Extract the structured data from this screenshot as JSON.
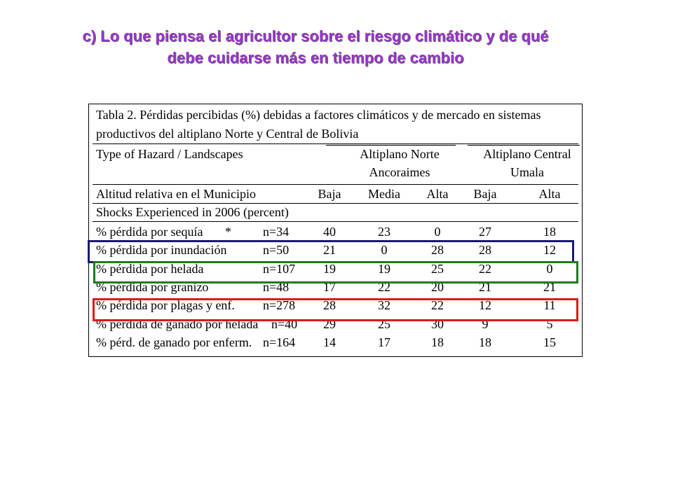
{
  "title": {
    "line1": "c) Lo que piensa el agricultor sobre el riesgo climático y de qué",
    "line2": "debe cuidarse más en tiempo de cambio"
  },
  "table": {
    "caption_line1": "Tabla 2. Pérdidas percibidas (%) debidas a factores climáticos y de mercado en sistemas",
    "caption_line2": "productivos del altiplano Norte y Central de Bolivia",
    "hazard_header": "Type of Hazard / Landscapes",
    "region_north_line1": "Altiplano Norte",
    "region_north_line2": "Ancoraimes",
    "region_central_line1": "Altiplano Central",
    "region_central_line2": "Umala",
    "altitude_label": "Altitud relativa en el Municipio",
    "altitude_cols": [
      "Baja",
      "Media",
      "Alta",
      "Baja",
      "Alta"
    ],
    "shocks_label": "Shocks Experienced in 2006 (percent)",
    "rows": [
      {
        "label": "% pérdida por sequía",
        "mark": "*",
        "n": "n=34",
        "values": [
          "40",
          "23",
          "0",
          "27",
          "18"
        ]
      },
      {
        "label": "% pérdida por inundación",
        "mark": "",
        "n": "n=50",
        "values": [
          "21",
          "0",
          "28",
          "28",
          "12"
        ]
      },
      {
        "label": "% pérdida por helada",
        "mark": "",
        "n": "n=107",
        "values": [
          "19",
          "19",
          "25",
          "22",
          "0"
        ]
      },
      {
        "label": "% pérdida por granizo",
        "mark": "",
        "n": "n=48",
        "values": [
          "17",
          "22",
          "20",
          "21",
          "21"
        ]
      },
      {
        "label": "% pérdida por plagas y enf.",
        "mark": "",
        "n": "n=278",
        "values": [
          "28",
          "32",
          "22",
          "12",
          "11"
        ]
      },
      {
        "label": "% pérdida de ganado por helada",
        "mark": "",
        "n": "n=40",
        "values": [
          "29",
          "25",
          "30",
          "9",
          "5"
        ]
      },
      {
        "label": "% pérd. de ganado por enferm.",
        "mark": "",
        "n": "n=164",
        "values": [
          "14",
          "17",
          "18",
          "18",
          "15"
        ]
      }
    ]
  },
  "highlight_colors": {
    "inundacion": "#1a1a6e",
    "helada": "#1f7a1f",
    "plagas": "#e01818"
  }
}
